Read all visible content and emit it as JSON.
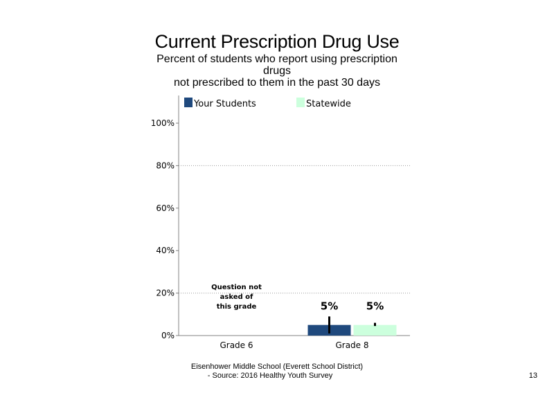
{
  "page": {
    "title": "Current Prescription Drug Use",
    "subtitle_lines": [
      "Percent of students who report using prescription",
      "drugs",
      "not prescribed to them in the past 30 days"
    ],
    "footer_lines": [
      "Eisenhower Middle School (Everett School District)",
      "- Source: 2016 Healthy Youth Survey"
    ],
    "page_number": "13"
  },
  "chart_data": {
    "type": "bar",
    "categories": [
      "Grade 6",
      "Grade 8"
    ],
    "series": [
      {
        "name": "Your Students",
        "color": "#1f497d",
        "values": [
          null,
          5
        ],
        "labels": [
          "",
          "5%"
        ],
        "error": [
          null,
          [
            1,
            9
          ]
        ]
      },
      {
        "name": "Statewide",
        "color": "#ccffdd",
        "values": [
          null,
          5
        ],
        "labels": [
          "",
          "5%"
        ],
        "error": [
          null,
          [
            4.5,
            6
          ]
        ]
      }
    ],
    "annotations": [
      {
        "category": "Grade 6",
        "lines": [
          "Question not",
          "asked of",
          "this grade"
        ]
      }
    ],
    "yticks": [
      0,
      20,
      40,
      60,
      80,
      100
    ],
    "ytick_labels": [
      "0%",
      "20%",
      "40%",
      "60%",
      "80%",
      "100%"
    ],
    "ylim": [
      0,
      100
    ],
    "gridlines": [
      20,
      80
    ],
    "legend_position": "top"
  }
}
